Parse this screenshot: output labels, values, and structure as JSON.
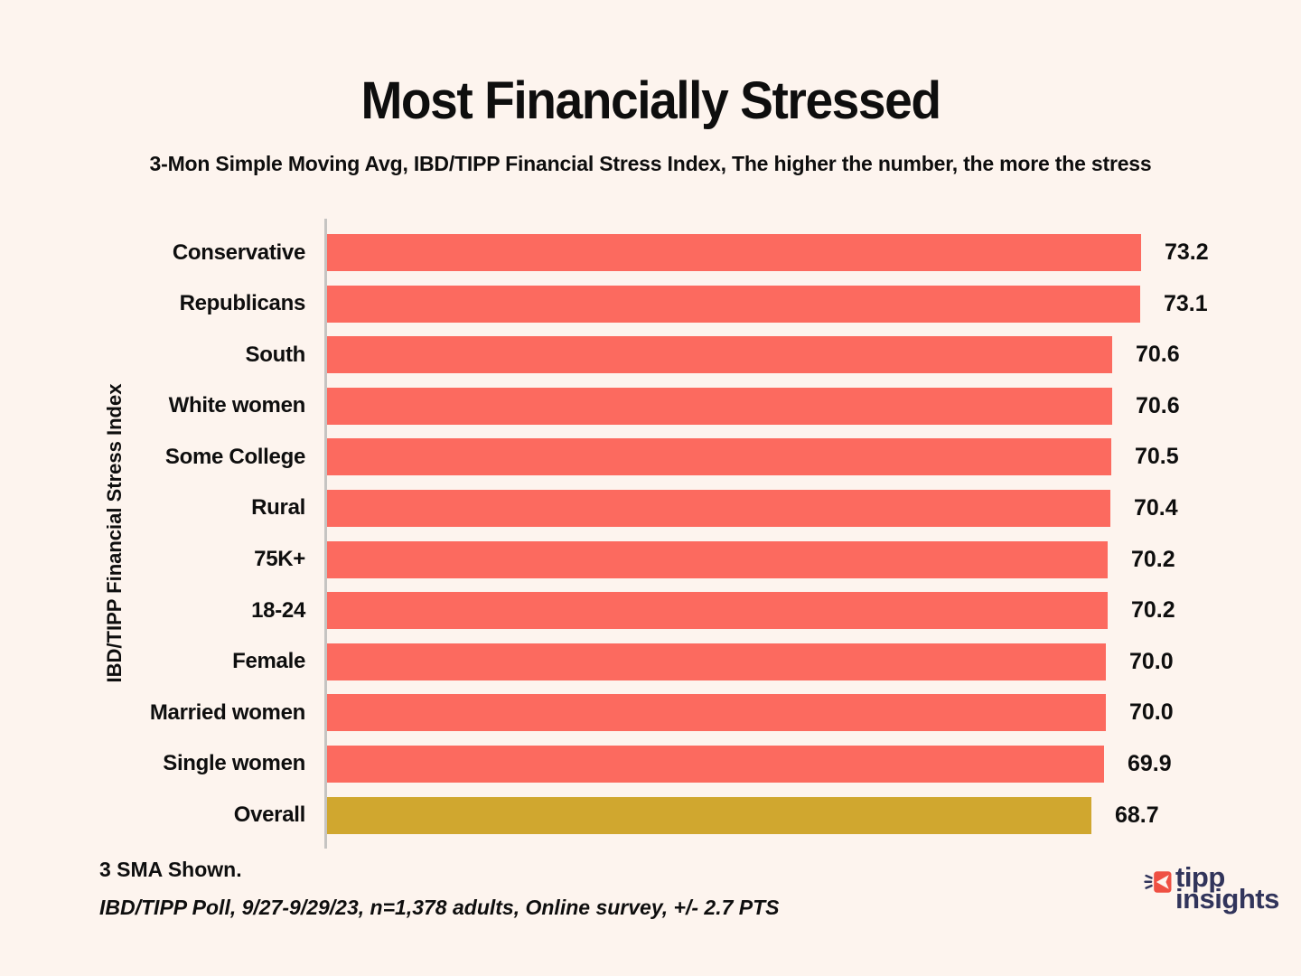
{
  "title": "Most Financially Stressed",
  "subtitle": "3-Mon Simple Moving Avg, IBD/TIPP Financial Stress Index, The higher the number, the more the stress",
  "y_axis_label": "IBD/TIPP Financial Stress Index",
  "footnote_line1": "3 SMA Shown.",
  "footnote_line2": "IBD/TIPP Poll, 9/27-9/29/23, n=1,378 adults, Online survey, +/- 2.7 PTS",
  "logo": {
    "line1": "tipp",
    "line2": "insights",
    "icon": "burst-arrow-icon"
  },
  "colors": {
    "background": "#FDF4EE",
    "bar": "#FC6A5F",
    "highlight_bar": "#D0A72F",
    "text": "#0E0E0E",
    "axis": "#C6C4C2",
    "logo_navy": "#31345B",
    "logo_red": "#EF5043"
  },
  "chart_data": {
    "type": "bar",
    "orientation": "horizontal",
    "title": "Most Financially Stressed",
    "subtitle": "3-Mon Simple Moving Avg, IBD/TIPP Financial Stress Index, The higher the number, the more the stress",
    "ylabel": "IBD/TIPP Financial Stress Index",
    "xlabel": "",
    "xlim": [
      0,
      73.2
    ],
    "grid": false,
    "legend": false,
    "value_labels_shown": true,
    "categories": [
      "Conservative",
      "Republicans",
      "South",
      "White women",
      "Some College",
      "Rural",
      "75K+",
      "18-24",
      "Female",
      "Married women",
      "Single women",
      "Overall"
    ],
    "values": [
      73.2,
      73.1,
      70.6,
      70.6,
      70.5,
      70.4,
      70.2,
      70.2,
      70.0,
      70.0,
      69.9,
      68.7
    ],
    "highlight_category": "Overall",
    "bar_color_default": "#FC6A5F",
    "bar_color_highlight": "#D0A72F"
  }
}
